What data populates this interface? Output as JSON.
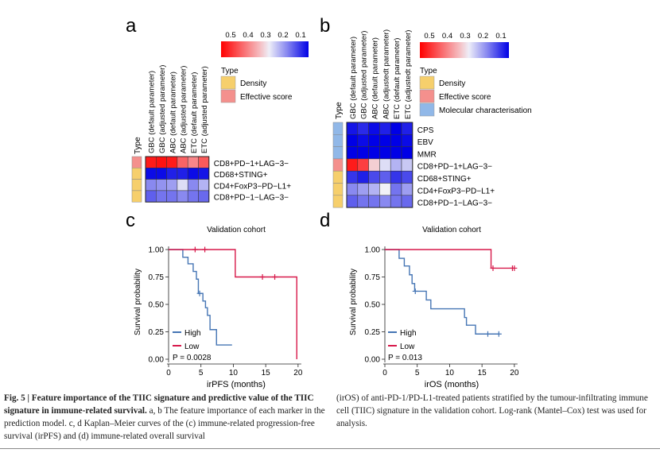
{
  "panels": {
    "a": {
      "letter": "a"
    },
    "b": {
      "letter": "b"
    },
    "c": {
      "letter": "c"
    },
    "d": {
      "letter": "d"
    }
  },
  "heatmap_a": {
    "type_label": "Type",
    "columns": [
      "GBC (default parameter)",
      "GBC (adjusted parameter)",
      "ABC (default parameter)",
      "ABC (adjusted parameter)",
      "ETC (default parameter)",
      "ETC (adjusted parameter)"
    ],
    "rows": [
      "CD8+PD−1+LAG−3−",
      "CD68+STING+",
      "CD4+FoxP3−PD−L1+",
      "CD8+PD−1−LAG−3−"
    ],
    "row_types": [
      "Effective score",
      "Density",
      "Density",
      "Density"
    ],
    "values": [
      [
        0.52,
        0.53,
        0.52,
        0.44,
        0.4,
        0.45
      ],
      [
        0.06,
        0.06,
        0.08,
        0.08,
        0.06,
        0.07
      ],
      [
        0.18,
        0.19,
        0.2,
        0.26,
        0.18,
        0.22
      ],
      [
        0.14,
        0.16,
        0.16,
        0.18,
        0.16,
        0.15
      ]
    ],
    "colorbar_ticks": [
      "0.5",
      "0.4",
      "0.3",
      "0.2",
      "0.1"
    ],
    "legend_title": "Type",
    "legend_items": [
      "Density",
      "Effective score"
    ]
  },
  "heatmap_b": {
    "type_label": "Type",
    "columns": [
      "GBC (default parameter)",
      "GBC (adjusted parameter)",
      "ABC (default parameter)",
      "ABC (adjustedt parameter)",
      "ETC (default parameter)",
      "ETC (adjustedt parameter)"
    ],
    "rows": [
      "CPS",
      "EBV",
      "MMR",
      "CD8+PD−1+LAG−3−",
      "CD68+STING+",
      "CD4+FoxP3−PD−L1+",
      "CD8+PD−1−LAG−3−"
    ],
    "row_types": [
      "Molecular characterisation",
      "Molecular characterisation",
      "Molecular characterisation",
      "Effective score",
      "Density",
      "Density",
      "Density"
    ],
    "values": [
      [
        0.07,
        0.09,
        0.06,
        0.08,
        0.05,
        0.08
      ],
      [
        0.05,
        0.06,
        0.05,
        0.05,
        0.04,
        0.06
      ],
      [
        0.05,
        0.05,
        0.05,
        0.05,
        0.05,
        0.05
      ],
      [
        0.52,
        0.48,
        0.32,
        0.26,
        0.22,
        0.24
      ],
      [
        0.1,
        0.08,
        0.12,
        0.14,
        0.1,
        0.12
      ],
      [
        0.18,
        0.2,
        0.22,
        0.28,
        0.16,
        0.2
      ],
      [
        0.14,
        0.16,
        0.16,
        0.18,
        0.16,
        0.15
      ]
    ],
    "colorbar_ticks": [
      "0.5",
      "0.4",
      "0.3",
      "0.2",
      "0.1"
    ],
    "legend_title": "Type",
    "legend_items": [
      "Density",
      "Effective score",
      "Molecular characterisation"
    ]
  },
  "colors": {
    "density": "#f6cf6c",
    "effective": "#f4908d",
    "molecular": "#91b8e8",
    "high": "#4575b4",
    "low": "#d7194a",
    "heat_high": "#ff0000",
    "heat_mid": "#f2f2f7",
    "heat_low": "#0000e6"
  },
  "km_c": {
    "title": "Validation cohort",
    "xlabel": "irPFS (months)",
    "ylabel": "Survival probability",
    "xticks": [
      "0",
      "5",
      "10",
      "15",
      "20"
    ],
    "yticks": [
      "0.00",
      "0.25",
      "0.50",
      "0.75",
      "1.00"
    ],
    "legend": [
      "High",
      "Low"
    ],
    "pvalue": "P = 0.0028"
  },
  "km_d": {
    "title": "Validation cohort",
    "xlabel": "irOS (months)",
    "ylabel": "Survival probability",
    "xticks": [
      "0",
      "5",
      "10",
      "15",
      "20"
    ],
    "yticks": [
      "0.00",
      "0.25",
      "0.50",
      "0.75",
      "1.00"
    ],
    "legend": [
      "High",
      "Low"
    ],
    "pvalue": "P = 0.013"
  },
  "chart_data": [
    {
      "type": "heatmap",
      "title": "",
      "x": [
        "GBC (default parameter)",
        "GBC (adjusted parameter)",
        "ABC (default parameter)",
        "ABC (adjusted parameter)",
        "ETC (default parameter)",
        "ETC (adjusted parameter)"
      ],
      "y": [
        "CD8+PD−1+LAG−3−",
        "CD68+STING+",
        "CD4+FoxP3−PD−L1+",
        "CD8+PD−1−LAG−3−"
      ],
      "note": "values shown in heatmap_a.values"
    },
    {
      "type": "heatmap",
      "title": "",
      "x": [
        "GBC (default parameter)",
        "GBC (adjusted parameter)",
        "ABC (default parameter)",
        "ABC (adjustedt parameter)",
        "ETC (default parameter)",
        "ETC (adjustedt parameter)"
      ],
      "y": [
        "CPS",
        "EBV",
        "MMR",
        "CD8+PD−1+LAG−3−",
        "CD68+STING+",
        "CD4+FoxP3−PD−L1+",
        "CD8+PD−1−LAG−3−"
      ],
      "note": "values shown in heatmap_b.values"
    },
    {
      "type": "line",
      "title": "Validation cohort",
      "xlabel": "irPFS (months)",
      "ylabel": "Survival probability",
      "xlim": [
        0,
        21
      ],
      "ylim": [
        0,
        1
      ],
      "series": [
        {
          "name": "High",
          "steps": [
            [
              0,
              1.0
            ],
            [
              2.2,
              0.93
            ],
            [
              3.0,
              0.87
            ],
            [
              3.8,
              0.8
            ],
            [
              4.3,
              0.73
            ],
            [
              4.6,
              0.6
            ],
            [
              5.3,
              0.53
            ],
            [
              5.7,
              0.47
            ],
            [
              6.0,
              0.4
            ],
            [
              6.4,
              0.27
            ],
            [
              7.4,
              0.13
            ],
            [
              9.8,
              0.13
            ]
          ],
          "end": 9.8,
          "censored": [
            [
              4.8,
              0.6
            ]
          ]
        },
        {
          "name": "Low",
          "steps": [
            [
              0,
              1.0
            ],
            [
              10.3,
              0.75
            ],
            [
              19.8,
              0.75
            ],
            [
              19.8,
              0.0
            ]
          ],
          "end": 19.8,
          "censored": [
            [
              4.1,
              1.0
            ],
            [
              5.6,
              1.0
            ],
            [
              14.5,
              0.75
            ],
            [
              16.4,
              0.75
            ]
          ]
        }
      ]
    },
    {
      "type": "line",
      "title": "Validation cohort",
      "xlabel": "irOS (months)",
      "ylabel": "Survival probability",
      "xlim": [
        0,
        21
      ],
      "ylim": [
        0,
        1
      ],
      "series": [
        {
          "name": "High",
          "steps": [
            [
              0,
              1.0
            ],
            [
              2.2,
              0.92
            ],
            [
              3.0,
              0.85
            ],
            [
              3.8,
              0.77
            ],
            [
              4.2,
              0.69
            ],
            [
              4.6,
              0.62
            ],
            [
              6.4,
              0.54
            ],
            [
              7.1,
              0.46
            ],
            [
              12.3,
              0.38
            ],
            [
              12.6,
              0.31
            ],
            [
              14.0,
              0.23
            ],
            [
              17.6,
              0.23
            ]
          ],
          "end": 17.6,
          "censored": [
            [
              4.7,
              0.62
            ],
            [
              15.9,
              0.23
            ],
            [
              17.6,
              0.23
            ]
          ]
        },
        {
          "name": "Low",
          "steps": [
            [
              0,
              1.0
            ],
            [
              16.4,
              0.83
            ],
            [
              20.0,
              0.83
            ]
          ],
          "end": 20.0,
          "censored": [
            [
              16.7,
              0.83
            ],
            [
              19.7,
              0.83
            ],
            [
              20.0,
              0.83
            ]
          ]
        }
      ]
    }
  ],
  "caption": {
    "left_bold": "Fig. 5 | Feature importance of the TIIC signature and predictive value of the TIIC signature in immune-related survival.",
    "left_text": " a, b The feature importance of each marker in the prediction model. c, d Kaplan–Meier curves of the (c) immune-related progression-free survival (irPFS) and (d) immune-related overall survival",
    "right_text": "(irOS) of anti-PD-1/PD-L1-treated patients stratified by the tumour-infiltrating immune cell (TIIC) signature in the validation cohort. Log-rank (Mantel–Cox) test was used for analysis."
  }
}
